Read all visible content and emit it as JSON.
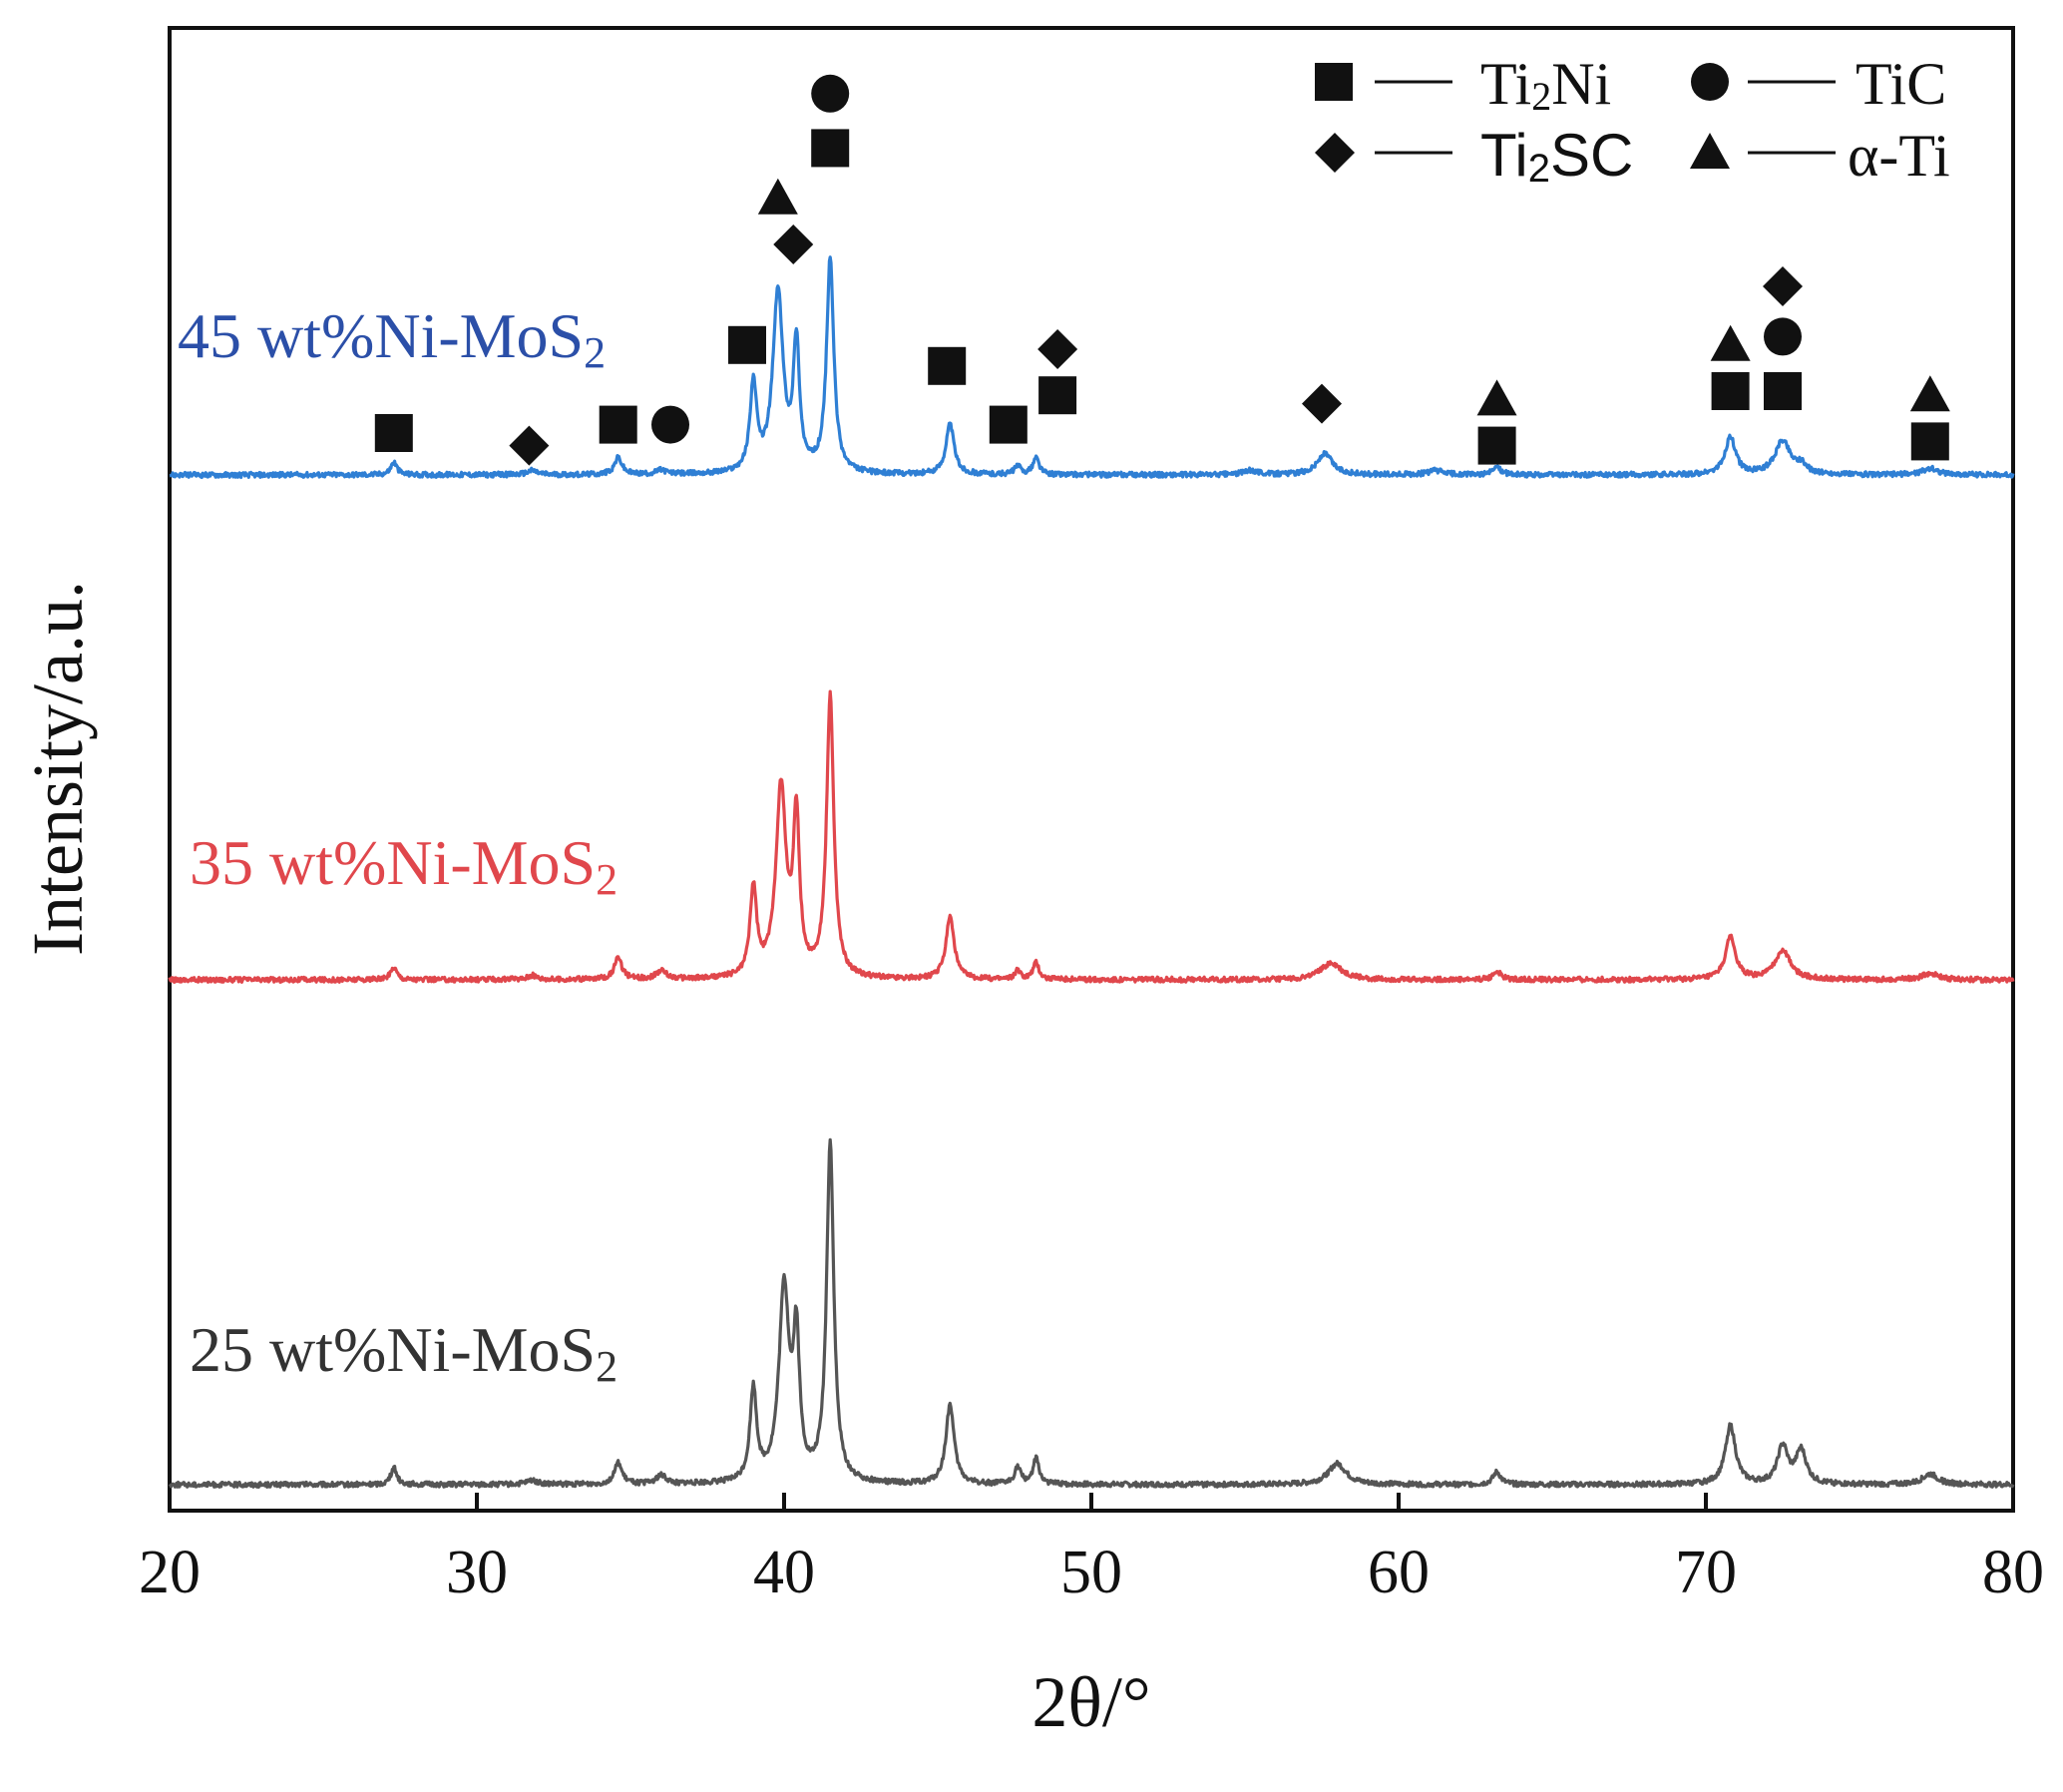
{
  "chart_data": {
    "type": "line",
    "title": "",
    "xlabel": "2θ/°",
    "ylabel": "Intensity/a.u.",
    "xlim": [
      20,
      80
    ],
    "xticks": [
      "20",
      "30",
      "40",
      "50",
      "60",
      "70",
      "80"
    ],
    "grid": false,
    "y_units": "arbitrary (stacked patterns, offset per series)",
    "series": [
      {
        "name": "45 wt%Ni-MoS",
        "name_subscript": "2",
        "color": "#2f7fd4",
        "label_color": "#2b4fa8",
        "offset": 2.0,
        "base": 0.0,
        "noise_seed": 45,
        "peaks": [
          [
            27.3,
            0.03,
            0.12
          ],
          [
            31.8,
            0.01,
            0.2
          ],
          [
            34.6,
            0.04,
            0.15
          ],
          [
            36.0,
            0.01,
            0.2
          ],
          [
            39.0,
            0.21,
            0.13
          ],
          [
            39.8,
            0.43,
            0.2
          ],
          [
            40.4,
            0.3,
            0.12
          ],
          [
            41.5,
            0.51,
            0.14
          ],
          [
            45.4,
            0.12,
            0.16
          ],
          [
            47.6,
            0.02,
            0.12
          ],
          [
            48.2,
            0.04,
            0.12
          ],
          [
            55.2,
            0.01,
            0.3
          ],
          [
            57.6,
            0.05,
            0.3
          ],
          [
            61.2,
            0.01,
            0.3
          ],
          [
            63.2,
            0.02,
            0.15
          ],
          [
            70.8,
            0.09,
            0.2
          ],
          [
            72.5,
            0.08,
            0.3
          ],
          [
            73.1,
            0.02,
            0.2
          ],
          [
            77.3,
            0.015,
            0.3
          ]
        ]
      },
      {
        "name": "35 wt%Ni-MoS",
        "name_subscript": "2",
        "color": "#e0474c",
        "label_color": "#e0474c",
        "offset": 1.0,
        "base": 0.0,
        "noise_seed": 35,
        "peaks": [
          [
            27.3,
            0.03,
            0.12
          ],
          [
            31.8,
            0.01,
            0.2
          ],
          [
            34.6,
            0.05,
            0.15
          ],
          [
            36.0,
            0.02,
            0.2
          ],
          [
            39.0,
            0.21,
            0.13
          ],
          [
            39.9,
            0.45,
            0.2
          ],
          [
            40.4,
            0.37,
            0.12
          ],
          [
            41.5,
            0.67,
            0.14
          ],
          [
            45.4,
            0.15,
            0.16
          ],
          [
            47.6,
            0.02,
            0.12
          ],
          [
            48.2,
            0.04,
            0.12
          ],
          [
            57.8,
            0.04,
            0.4
          ],
          [
            63.2,
            0.02,
            0.15
          ],
          [
            70.8,
            0.1,
            0.2
          ],
          [
            72.5,
            0.07,
            0.3
          ],
          [
            77.3,
            0.015,
            0.3
          ]
        ]
      },
      {
        "name": "25 wt%Ni-MoS",
        "name_subscript": "2",
        "color": "#555555",
        "label_color": "#333333",
        "offset": 0.0,
        "base": 0.0,
        "noise_seed": 25,
        "peaks": [
          [
            27.3,
            0.04,
            0.12
          ],
          [
            31.8,
            0.01,
            0.2
          ],
          [
            34.6,
            0.05,
            0.15
          ],
          [
            36.0,
            0.02,
            0.2
          ],
          [
            39.0,
            0.22,
            0.13
          ],
          [
            40.0,
            0.46,
            0.2
          ],
          [
            40.4,
            0.32,
            0.12
          ],
          [
            41.5,
            0.81,
            0.14
          ],
          [
            45.4,
            0.19,
            0.16
          ],
          [
            47.6,
            0.04,
            0.12
          ],
          [
            48.2,
            0.06,
            0.12
          ],
          [
            58.0,
            0.05,
            0.35
          ],
          [
            63.2,
            0.03,
            0.15
          ],
          [
            70.8,
            0.14,
            0.2
          ],
          [
            72.5,
            0.09,
            0.2
          ],
          [
            73.1,
            0.08,
            0.2
          ],
          [
            77.3,
            0.025,
            0.3
          ]
        ]
      }
    ],
    "legend": {
      "placement": "top-right",
      "entries": [
        {
          "marker": "square",
          "dash": "—",
          "label_main": "Ti",
          "label_sub": "2",
          "label_rest": "Ni"
        },
        {
          "marker": "circle",
          "dash": "—",
          "label_main": "TiC",
          "label_sub": "",
          "label_rest": ""
        },
        {
          "marker": "diamond",
          "dash": "—",
          "label_main": "Ti",
          "label_sub": "2",
          "label_rest": "SC"
        },
        {
          "marker": "triangle",
          "dash": "—",
          "label_main": "α-Ti",
          "label_sub": "",
          "label_rest": ""
        }
      ]
    },
    "phase_markers": [
      {
        "phase": "square",
        "x": 27.3,
        "level": 0.1
      },
      {
        "phase": "diamond",
        "x": 31.7,
        "level": 0.07
      },
      {
        "phase": "square",
        "x": 34.6,
        "level": 0.12
      },
      {
        "phase": "circle",
        "x": 36.3,
        "level": 0.12
      },
      {
        "phase": "square",
        "x": 38.8,
        "level": 0.31
      },
      {
        "phase": "triangle",
        "x": 39.8,
        "level": 0.66
      },
      {
        "phase": "diamond",
        "x": 40.3,
        "level": 0.55
      },
      {
        "phase": "square",
        "x": 41.5,
        "level": 0.78
      },
      {
        "phase": "circle",
        "x": 41.5,
        "level": 0.91
      },
      {
        "phase": "square",
        "x": 45.3,
        "level": 0.26
      },
      {
        "phase": "square",
        "x": 47.3,
        "level": 0.12
      },
      {
        "phase": "square",
        "x": 48.9,
        "level": 0.19
      },
      {
        "phase": "diamond",
        "x": 48.9,
        "level": 0.3
      },
      {
        "phase": "diamond",
        "x": 57.5,
        "level": 0.17
      },
      {
        "phase": "square",
        "x": 63.2,
        "level": 0.07
      },
      {
        "phase": "triangle",
        "x": 63.2,
        "level": 0.18
      },
      {
        "phase": "square",
        "x": 70.8,
        "level": 0.2
      },
      {
        "phase": "triangle",
        "x": 70.8,
        "level": 0.31
      },
      {
        "phase": "square",
        "x": 72.5,
        "level": 0.2
      },
      {
        "phase": "circle",
        "x": 72.5,
        "level": 0.33
      },
      {
        "phase": "diamond",
        "x": 72.5,
        "level": 0.45
      },
      {
        "phase": "square",
        "x": 77.3,
        "level": 0.08
      },
      {
        "phase": "triangle",
        "x": 77.3,
        "level": 0.19
      }
    ]
  }
}
